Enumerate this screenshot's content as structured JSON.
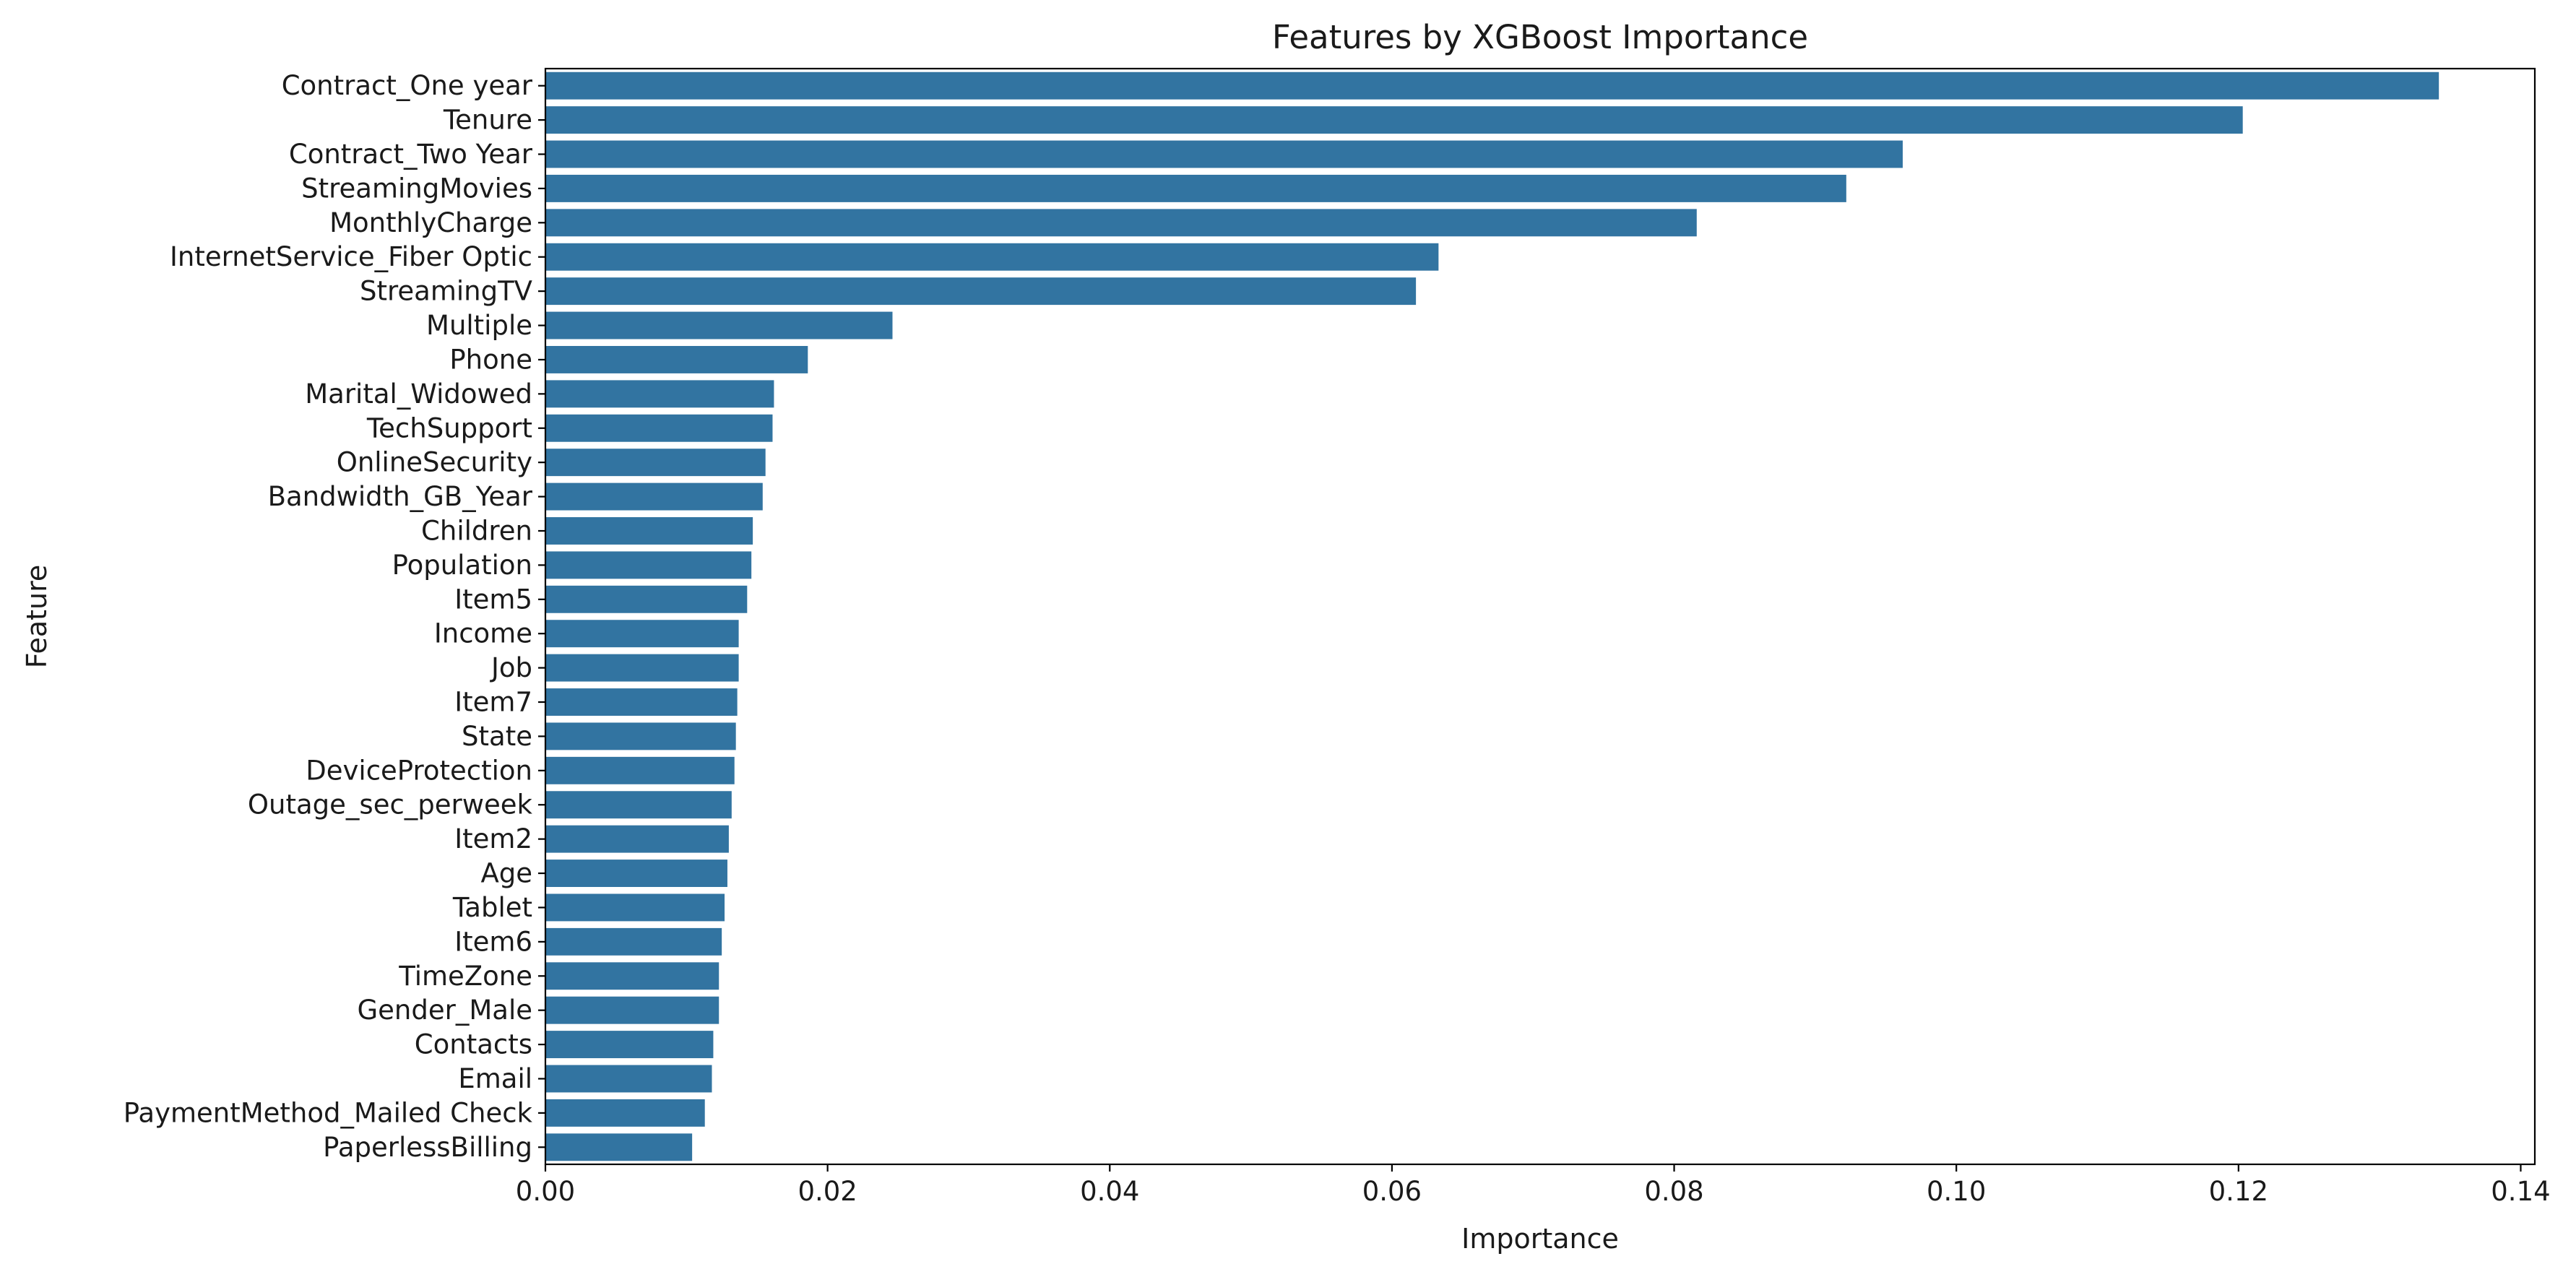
{
  "chart_data": {
    "type": "bar",
    "orientation": "horizontal",
    "title": "Features by XGBoost Importance",
    "xlabel": "Importance",
    "ylabel": "Feature",
    "xlim": [
      0,
      0.141
    ],
    "xticks": [
      0.0,
      0.02,
      0.04,
      0.06,
      0.08,
      0.1,
      0.12,
      0.14
    ],
    "xtick_labels": [
      "0.00",
      "0.02",
      "0.04",
      "0.06",
      "0.08",
      "0.10",
      "0.12",
      "0.14"
    ],
    "grid": false,
    "bar_color": "#3274a1",
    "categories": [
      "Contract_One year",
      "Tenure",
      "Contract_Two Year",
      "StreamingMovies",
      "MonthlyCharge",
      "InternetService_Fiber Optic",
      "StreamingTV",
      "Multiple",
      "Phone",
      "Marital_Widowed",
      "TechSupport",
      "OnlineSecurity",
      "Bandwidth_GB_Year",
      "Children",
      "Population",
      "Item5",
      "Income",
      "Job",
      "Item7",
      "State",
      "DeviceProtection",
      "Outage_sec_perweek",
      "Item2",
      "Age",
      "Tablet",
      "Item6",
      "TimeZone",
      "Gender_Male",
      "Contacts",
      "Email",
      "PaymentMethod_Mailed Check",
      "PaperlessBilling"
    ],
    "values": [
      0.1342,
      0.1203,
      0.0962,
      0.0922,
      0.0816,
      0.0633,
      0.0617,
      0.0246,
      0.0186,
      0.0162,
      0.0161,
      0.0156,
      0.0154,
      0.0147,
      0.0146,
      0.0143,
      0.0137,
      0.0137,
      0.0136,
      0.0135,
      0.0134,
      0.0132,
      0.013,
      0.0129,
      0.0127,
      0.0125,
      0.0123,
      0.0123,
      0.0119,
      0.0118,
      0.0113,
      0.0104
    ]
  }
}
